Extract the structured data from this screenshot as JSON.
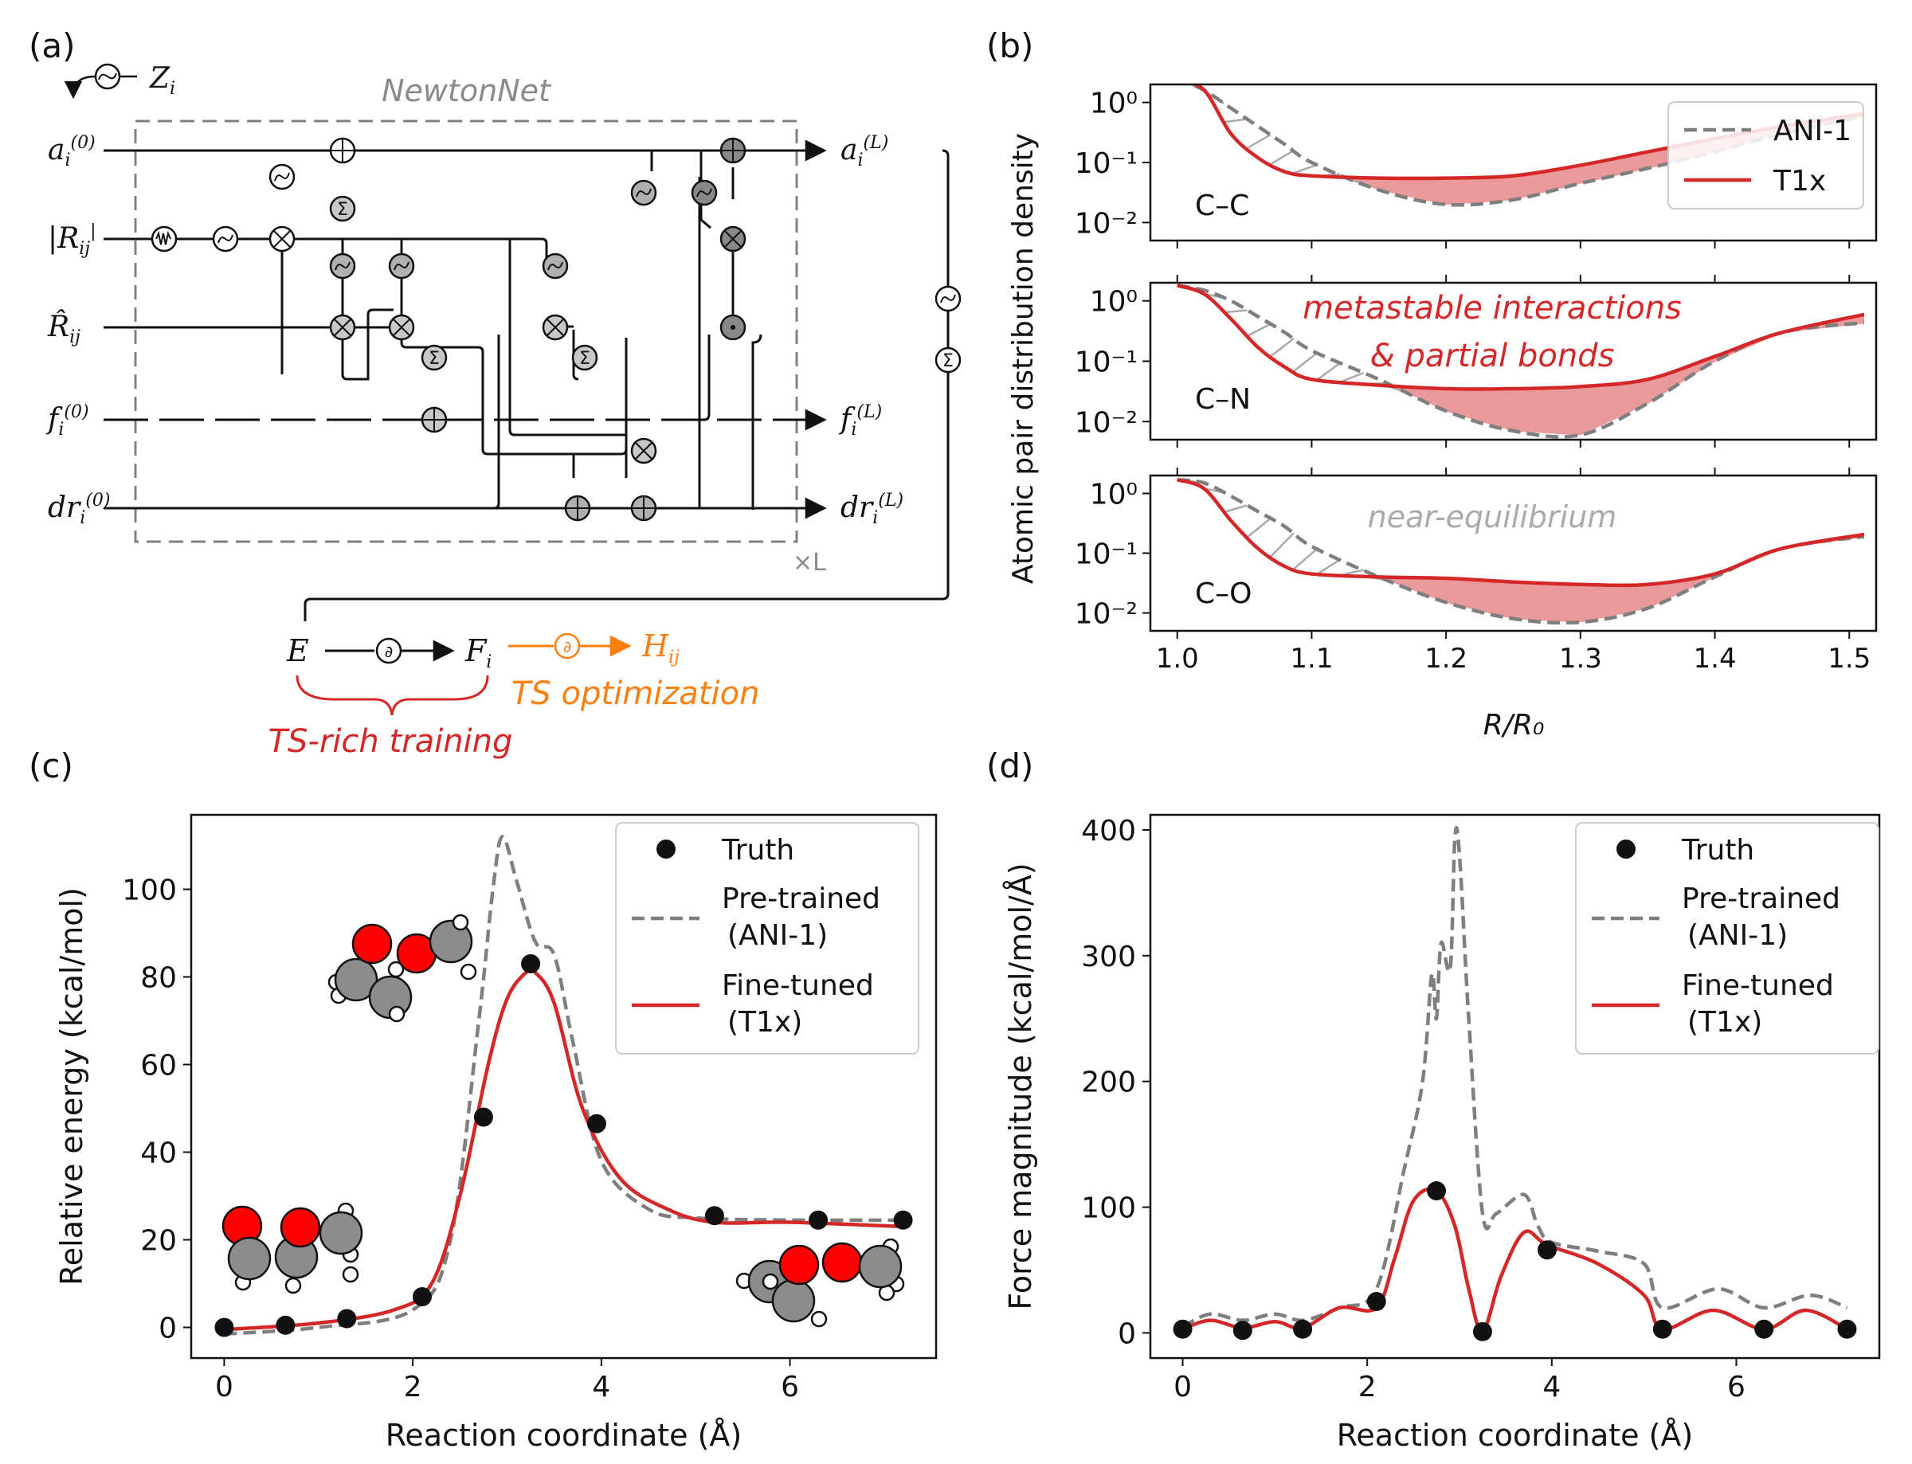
{
  "panel_labels": {
    "a": "(a)",
    "b": "(b)",
    "c": "(c)",
    "d": "(d)"
  },
  "colors": {
    "red": "#d62728",
    "grey": "#7f7f7f",
    "orange": "#ff7f0e",
    "fill": "#eb9a9c"
  },
  "diagram": {
    "network_name": "NewtonNet",
    "input_z": "Z",
    "input_z_sub": "i",
    "inputs": [
      {
        "base": "a",
        "sub": "i",
        "sup": "(0)"
      },
      {
        "base": "|R",
        "sub": "ij",
        "sup": "|"
      },
      {
        "base": "R̂",
        "sub": "ij",
        "sup": ""
      },
      {
        "base": "f",
        "sub": "i",
        "sup": "(0)"
      },
      {
        "base": "dr",
        "sub": "i",
        "sup": "(0)"
      }
    ],
    "outputs": [
      {
        "base": "a",
        "sub": "i",
        "sup": "(L)"
      },
      {
        "base": "f",
        "sub": "i",
        "sup": "(L)"
      },
      {
        "base": "dr",
        "sub": "i",
        "sup": "(L)"
      }
    ],
    "repeat_label": "×L",
    "energy": "E",
    "forces": "F",
    "forces_sub": "i",
    "hessian": "H",
    "hessian_sub": "ij",
    "training_label": "TS-rich training",
    "optimization_label": "TS optimization"
  },
  "chart_data": [
    {
      "id": "b",
      "type": "line",
      "ylabel": "Atomic pair distribution density",
      "xlabel": "R/R₀",
      "xlim": [
        0.98,
        1.52
      ],
      "xticks": [
        "1.0",
        "1.1",
        "1.2",
        "1.3",
        "1.4",
        "1.5"
      ],
      "ylim_log10": [
        -2.3,
        0.3
      ],
      "yticks": [
        "10⁰",
        "10⁻¹",
        "10⁻²"
      ],
      "legend": [
        "ANI-1",
        "T1x"
      ],
      "annotations": [
        "metastable interactions",
        "& partial bonds",
        "near-equilibrium"
      ],
      "subplots": [
        {
          "label": "C–C",
          "x": [
            1.0,
            1.02,
            1.04,
            1.06,
            1.08,
            1.1,
            1.15,
            1.2,
            1.25,
            1.3,
            1.35,
            1.4,
            1.45,
            1.52
          ],
          "ani1": [
            2.5,
            1.6,
            0.8,
            0.4,
            0.2,
            0.1,
            0.035,
            0.02,
            0.024,
            0.045,
            0.08,
            0.15,
            0.3,
            0.65
          ],
          "t1x": [
            2.5,
            1.6,
            0.3,
            0.12,
            0.07,
            0.06,
            0.055,
            0.055,
            0.06,
            0.09,
            0.15,
            0.25,
            0.4,
            0.7
          ]
        },
        {
          "label": "C–N",
          "x": [
            1.0,
            1.02,
            1.04,
            1.06,
            1.08,
            1.1,
            1.15,
            1.2,
            1.25,
            1.3,
            1.35,
            1.4,
            1.45,
            1.52
          ],
          "ani1": [
            1.8,
            1.5,
            1.0,
            0.55,
            0.3,
            0.15,
            0.05,
            0.015,
            0.007,
            0.006,
            0.02,
            0.1,
            0.3,
            0.45
          ],
          "t1x": [
            1.8,
            1.3,
            0.5,
            0.17,
            0.08,
            0.05,
            0.04,
            0.035,
            0.035,
            0.038,
            0.05,
            0.12,
            0.3,
            0.65
          ]
        },
        {
          "label": "C–O",
          "x": [
            1.0,
            1.02,
            1.04,
            1.06,
            1.08,
            1.1,
            1.15,
            1.2,
            1.25,
            1.3,
            1.35,
            1.4,
            1.45,
            1.52
          ],
          "ani1": [
            1.7,
            1.5,
            0.9,
            0.5,
            0.28,
            0.13,
            0.04,
            0.015,
            0.008,
            0.007,
            0.012,
            0.04,
            0.12,
            0.2
          ],
          "t1x": [
            1.7,
            1.2,
            0.35,
            0.12,
            0.06,
            0.045,
            0.04,
            0.038,
            0.033,
            0.03,
            0.03,
            0.045,
            0.12,
            0.22
          ]
        }
      ]
    },
    {
      "id": "c",
      "type": "line",
      "xlabel": "Reaction coordinate (Å)",
      "ylabel": "Relative energy (kcal/mol)",
      "xlim": [
        -0.35,
        7.55
      ],
      "ylim": [
        -7,
        117
      ],
      "xticks": [
        0,
        2,
        4,
        6
      ],
      "yticks": [
        0,
        20,
        40,
        60,
        80,
        100
      ],
      "legend": [
        "Truth",
        "Pre-trained\n(ANI-1)",
        "Fine-tuned\n(T1x)"
      ],
      "truth": {
        "x": [
          0,
          0.65,
          1.3,
          2.1,
          2.75,
          3.25,
          3.95,
          5.2,
          6.3,
          7.2
        ],
        "y": [
          0,
          0.5,
          2,
          7,
          48,
          83,
          46.5,
          25.5,
          24.5,
          24.5
        ]
      },
      "pretrained": {
        "x": [
          0,
          1,
          2,
          2.4,
          2.7,
          2.85,
          2.95,
          3.1,
          3.3,
          3.5,
          3.7,
          4.0,
          4.5,
          5.0,
          6.0,
          7.2
        ],
        "y": [
          -1.5,
          0,
          4,
          20,
          70,
          100,
          112,
          102,
          88,
          85,
          65,
          38,
          27,
          25,
          24.5,
          24.5
        ]
      },
      "finetuned": {
        "x": [
          0,
          1,
          1.8,
          2.2,
          2.5,
          2.8,
          3.0,
          3.2,
          3.3,
          3.5,
          3.8,
          4.2,
          4.7,
          5.2,
          6.0,
          7.2
        ],
        "y": [
          -0.5,
          1,
          4,
          10,
          30,
          60,
          75,
          81,
          81,
          74,
          50,
          34,
          27,
          24,
          24,
          23
        ]
      }
    },
    {
      "id": "d",
      "type": "line",
      "xlabel": "Reaction coordinate (Å)",
      "ylabel": "Force magnitude (kcal/mol/Å)",
      "xlim": [
        -0.35,
        7.55
      ],
      "ylim": [
        -20,
        412
      ],
      "xticks": [
        0,
        2,
        4,
        6
      ],
      "yticks": [
        0,
        100,
        200,
        300,
        400
      ],
      "legend": [
        "Truth",
        "Pre-trained\n(ANI-1)",
        "Fine-tuned\n(T1x)"
      ],
      "truth": {
        "x": [
          0,
          0.65,
          1.3,
          2.1,
          2.75,
          3.25,
          3.95,
          5.2,
          6.3,
          7.2
        ],
        "y": [
          3,
          2,
          3,
          25,
          113,
          1,
          66,
          3,
          3,
          3
        ]
      },
      "pretrained": {
        "x": [
          0,
          0.3,
          0.65,
          1.0,
          1.3,
          1.7,
          2.1,
          2.4,
          2.6,
          2.7,
          2.75,
          2.8,
          2.9,
          2.95,
          3.0,
          3.1,
          3.25,
          3.4,
          3.7,
          3.85,
          4.0,
          4.5,
          5.0,
          5.2,
          5.8,
          6.3,
          6.8,
          7.2
        ],
        "y": [
          5,
          15,
          10,
          15,
          10,
          20,
          35,
          130,
          200,
          285,
          250,
          310,
          290,
          393,
          380,
          250,
          95,
          95,
          110,
          85,
          72,
          65,
          55,
          20,
          35,
          20,
          30,
          20
        ]
      },
      "finetuned": {
        "x": [
          0,
          0.3,
          0.65,
          1.0,
          1.3,
          1.7,
          2.1,
          2.3,
          2.5,
          2.75,
          2.95,
          3.1,
          3.25,
          3.45,
          3.7,
          3.95,
          4.5,
          5.0,
          5.2,
          5.75,
          6.3,
          6.75,
          7.2
        ],
        "y": [
          3,
          10,
          4,
          9,
          4,
          20,
          20,
          60,
          105,
          113,
          85,
          35,
          1,
          45,
          80,
          70,
          55,
          30,
          3,
          18,
          3,
          18,
          3
        ]
      }
    }
  ]
}
